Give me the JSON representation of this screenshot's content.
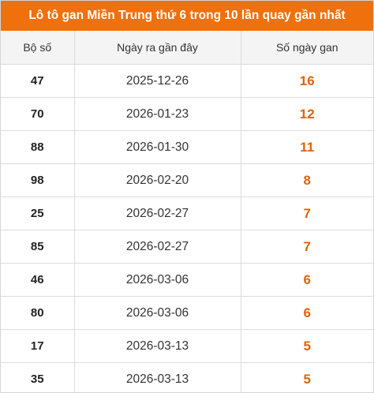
{
  "title": "Lô tô gan Miền Trung thứ 6 trong 10 lần quay gần nhất",
  "headers": {
    "number": "Bộ số",
    "last_date": "Ngày ra gần đây",
    "gan_days": "Số ngày gan"
  },
  "colors": {
    "title_background": "#f0700c",
    "gan_value": "#e2620a"
  },
  "rows": [
    {
      "number": "47",
      "last_date": "2025-12-26",
      "gan_days": "16"
    },
    {
      "number": "70",
      "last_date": "2026-01-23",
      "gan_days": "12"
    },
    {
      "number": "88",
      "last_date": "2026-01-30",
      "gan_days": "11"
    },
    {
      "number": "98",
      "last_date": "2026-02-20",
      "gan_days": "8"
    },
    {
      "number": "25",
      "last_date": "2026-02-27",
      "gan_days": "7"
    },
    {
      "number": "85",
      "last_date": "2026-02-27",
      "gan_days": "7"
    },
    {
      "number": "46",
      "last_date": "2026-03-06",
      "gan_days": "6"
    },
    {
      "number": "80",
      "last_date": "2026-03-06",
      "gan_days": "6"
    },
    {
      "number": "17",
      "last_date": "2026-03-13",
      "gan_days": "5"
    },
    {
      "number": "35",
      "last_date": "2026-03-13",
      "gan_days": "5"
    }
  ]
}
